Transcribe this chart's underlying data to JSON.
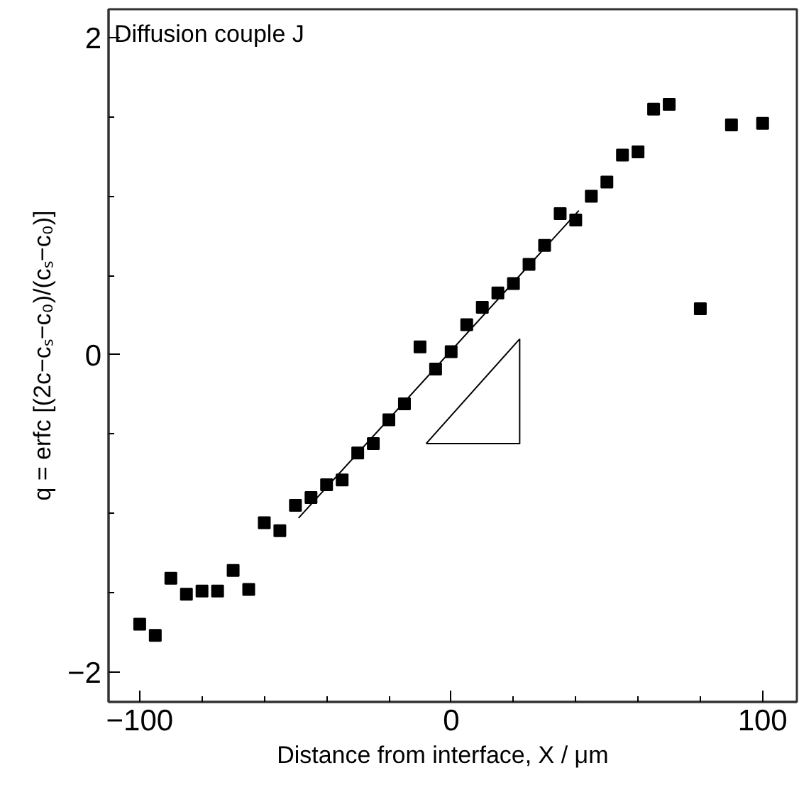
{
  "chart_data": {
    "type": "scatter",
    "title": "Diffusion couple J",
    "xlabel": "Distance from interface,    X / μm",
    "ylabel": "q = erfc [(2c−cₛ−c₀)/(cₛ−c₀)]",
    "marker": "square",
    "grid": false,
    "xlim": [
      -110,
      111
    ],
    "ylim": [
      -2.19,
      2.18
    ],
    "xticks": [
      {
        "value": -100,
        "label": "−100"
      },
      {
        "value": -80,
        "label": null
      },
      {
        "value": -60,
        "label": null
      },
      {
        "value": -40,
        "label": null
      },
      {
        "value": -20,
        "label": null
      },
      0,
      {
        "value": 20,
        "label": null
      },
      {
        "value": 40,
        "label": null
      },
      {
        "value": 60,
        "label": null
      },
      {
        "value": 80,
        "label": null
      },
      100
    ],
    "yticks": [
      {
        "value": -2,
        "label": "−2"
      },
      {
        "value": -1.5,
        "label": null
      },
      {
        "value": -1,
        "label": null
      },
      {
        "value": -0.5,
        "label": null
      },
      0,
      {
        "value": 0.5,
        "label": null
      },
      {
        "value": 1,
        "label": null
      },
      {
        "value": 1.5,
        "label": null
      },
      2
    ],
    "series": [
      {
        "color": "#000000",
        "x": [
          -100,
          -95,
          -90,
          -85,
          -80,
          -75,
          -70,
          -65,
          -60,
          -55,
          -50,
          -45,
          -40,
          -35,
          -30,
          -25,
          -20,
          -15,
          -10,
          -5,
          0,
          5,
          10,
          15,
          20,
          25,
          30,
          35,
          40,
          45,
          50,
          55,
          60,
          65,
          70,
          80,
          90,
          100
        ],
        "values": [
          -1.7,
          -1.77,
          -1.41,
          -1.51,
          -1.49,
          -1.49,
          -1.36,
          -1.48,
          -1.06,
          -1.11,
          -0.95,
          -0.9,
          -0.82,
          -0.79,
          -0.62,
          -0.56,
          -0.41,
          -0.31,
          0.05,
          -0.09,
          0.02,
          0.19,
          0.3,
          0.39,
          0.45,
          0.57,
          0.69,
          0.89,
          0.85,
          1.0,
          1.09,
          1.26,
          1.28,
          1.55,
          1.58,
          0.29,
          1.45,
          1.46
        ]
      },
      {
        "type": "line",
        "marker": "none",
        "color": "#000000",
        "x": [
          -49,
          41
        ],
        "values": [
          -1.03,
          0.91
        ]
      },
      {
        "type": "line",
        "marker": "none",
        "color": "#000000",
        "x": [
          -8,
          22
        ],
        "values": [
          -0.56,
          0.1
        ]
      },
      {
        "type": "line",
        "marker": "none",
        "color": "#000000",
        "x": [
          -8,
          22,
          22
        ],
        "values": [
          -0.56,
          -0.56,
          0.1
        ]
      }
    ]
  }
}
